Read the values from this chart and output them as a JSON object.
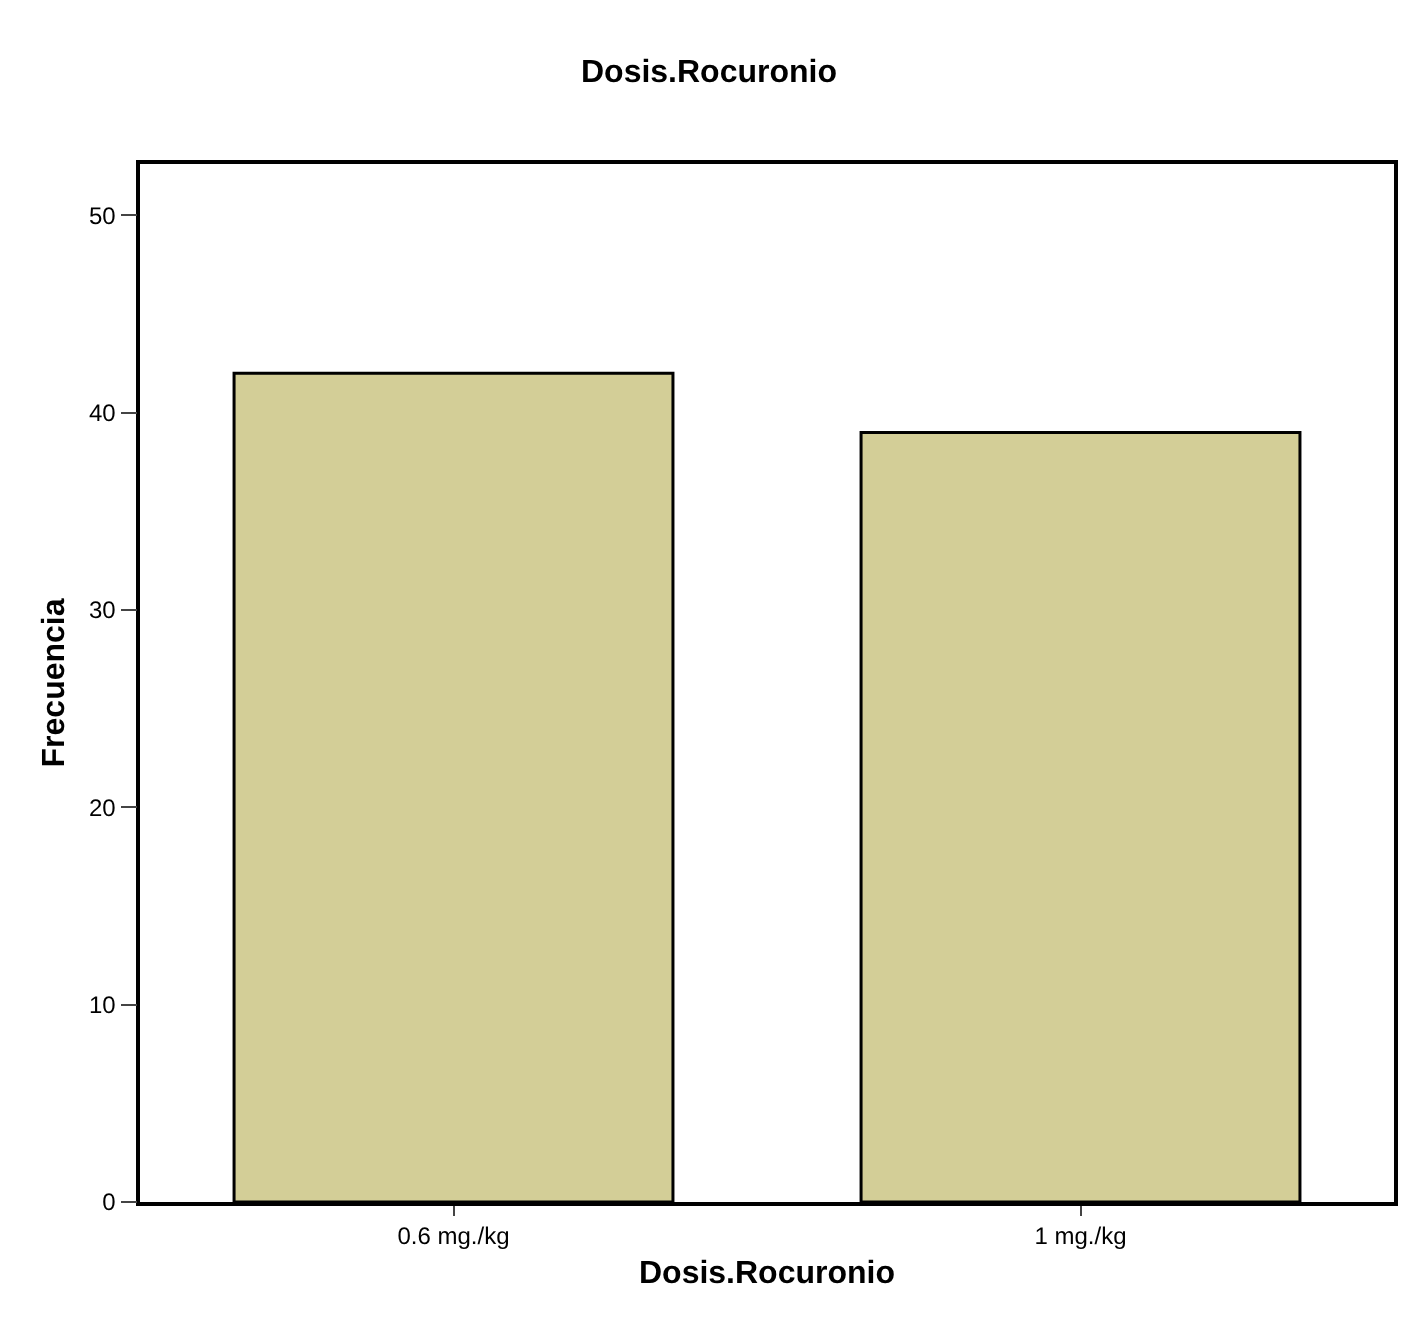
{
  "chart_data": {
    "type": "bar",
    "title": "Dosis.Rocuronio",
    "xlabel": "Dosis.Rocuronio",
    "ylabel": "Frecuencia",
    "categories": [
      "0.6 mg./kg",
      "1 mg./kg"
    ],
    "values": [
      42,
      39
    ],
    "color": "#d3ce97",
    "ylim": [
      0,
      52.6
    ],
    "yticks": [
      0,
      10,
      20,
      30,
      40,
      50
    ]
  }
}
